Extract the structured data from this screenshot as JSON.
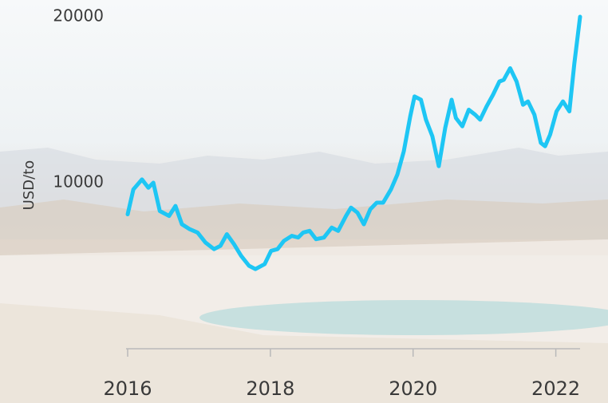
{
  "chart_data": {
    "type": "line",
    "y_label": "USD/to",
    "x": [
      2016.0,
      2016.08,
      2016.2,
      2016.29,
      2016.36,
      2016.45,
      2016.58,
      2016.67,
      2016.76,
      2016.87,
      2016.98,
      2017.09,
      2017.21,
      2017.3,
      2017.39,
      2017.49,
      2017.59,
      2017.7,
      2017.79,
      2017.92,
      2018.01,
      2018.1,
      2018.19,
      2018.3,
      2018.39,
      2018.46,
      2018.55,
      2018.64,
      2018.75,
      2018.86,
      2018.95,
      2019.06,
      2019.13,
      2019.22,
      2019.31,
      2019.4,
      2019.49,
      2019.58,
      2019.69,
      2019.78,
      2019.87,
      2019.96,
      2020.02,
      2020.11,
      2020.18,
      2020.27,
      2020.36,
      2020.45,
      2020.54,
      2020.6,
      2020.69,
      2020.78,
      2020.87,
      2020.94,
      2021.03,
      2021.12,
      2021.21,
      2021.27,
      2021.36,
      2021.45,
      2021.54,
      2021.61,
      2021.7,
      2021.79,
      2021.85,
      2021.92,
      2022.01,
      2022.1,
      2022.19,
      2022.26,
      2022.34
    ],
    "series": [
      {
        "name": "USD/to",
        "color": "#1ec6f4",
        "values": [
          8100,
          9600,
          10200,
          9700,
          10000,
          8300,
          8000,
          8600,
          7500,
          7200,
          7000,
          6400,
          6000,
          6200,
          6900,
          6300,
          5600,
          5000,
          4800,
          5100,
          5900,
          6000,
          6500,
          6800,
          6700,
          7000,
          7100,
          6600,
          6700,
          7300,
          7100,
          8000,
          8500,
          8200,
          7500,
          8400,
          8800,
          8800,
          9600,
          10500,
          11900,
          14000,
          15200,
          15000,
          13800,
          12800,
          11000,
          13300,
          15000,
          13900,
          13400,
          14400,
          14100,
          13800,
          14600,
          15300,
          16100,
          16200,
          16900,
          16100,
          14700,
          14900,
          14100,
          12400,
          12200,
          12900,
          14300,
          14900,
          14300,
          17200,
          20000
        ]
      }
    ],
    "xlim": [
      2016,
      2022.34
    ],
    "ylim": [
      0,
      20000
    ],
    "xticks": [
      2016,
      2018,
      2020,
      2022
    ],
    "yticks": [
      10000,
      20000
    ]
  }
}
